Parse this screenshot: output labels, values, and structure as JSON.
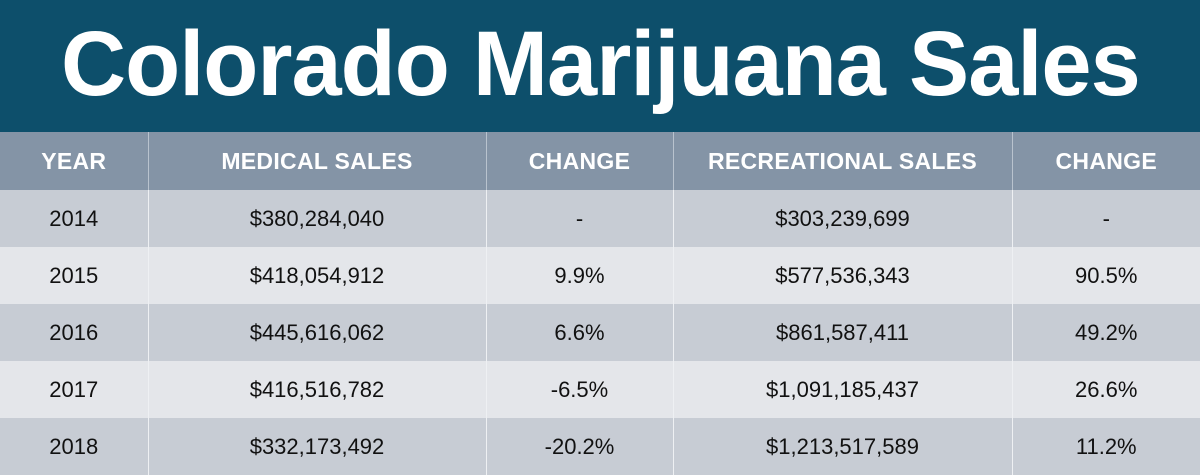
{
  "chart_data": {
    "type": "table",
    "title": "Colorado Marijuana Sales",
    "columns": [
      "YEAR",
      "MEDICAL SALES",
      "CHANGE",
      "RECREATIONAL SALES",
      "CHANGE"
    ],
    "rows": [
      [
        "2014",
        "$380,284,040",
        "-",
        "$303,239,699",
        "-"
      ],
      [
        "2015",
        "$418,054,912",
        "9.9%",
        "$577,536,343",
        "90.5%"
      ],
      [
        "2016",
        "$445,616,062",
        "6.6%",
        "$861,587,411",
        "49.2%"
      ],
      [
        "2017",
        "$416,516,782",
        "-6.5%",
        "$1,091,185,437",
        "26.6%"
      ],
      [
        "2018",
        "$332,173,492",
        "-20.2%",
        "$1,213,517,589",
        "11.2%"
      ]
    ],
    "series": [
      {
        "name": "MEDICAL SALES",
        "values": [
          380284040,
          418054912,
          445616062,
          416516782,
          332173492
        ]
      },
      {
        "name": "RECREATIONAL SALES",
        "values": [
          303239699,
          577536343,
          861587411,
          1091185437,
          1213517589
        ]
      }
    ],
    "x": [
      2014,
      2015,
      2016,
      2017,
      2018
    ]
  },
  "colors": {
    "title_background": "#0d4f6b",
    "header_background": "#8494a6",
    "row_dark": "#c7ccd4",
    "row_light": "#e4e6ea",
    "title_text": "#ffffff"
  }
}
